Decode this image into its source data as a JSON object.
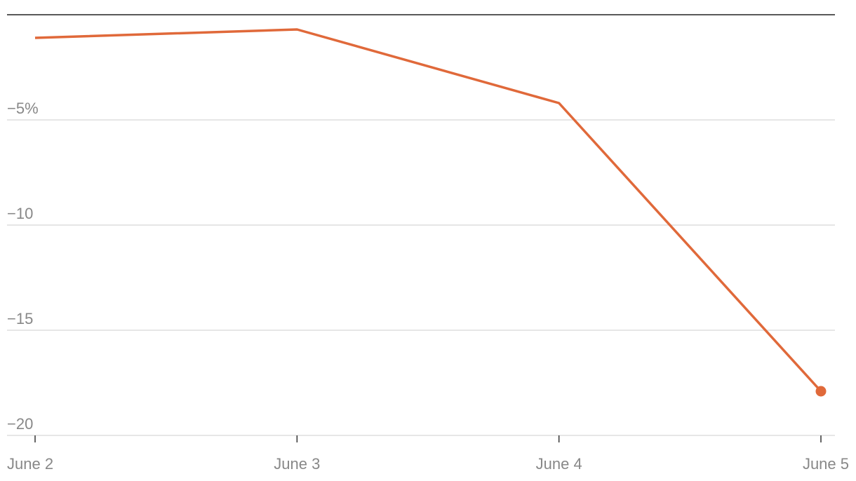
{
  "chart_data": {
    "type": "line",
    "categories": [
      "June 2",
      "June 3",
      "June 4",
      "June 5"
    ],
    "series": [
      {
        "color": "#e0693a",
        "values": [
          -1.1,
          -0.7,
          -4.2,
          -17.9
        ]
      }
    ],
    "ylim": [
      -20,
      0
    ],
    "yticks": [
      {
        "value": -5,
        "label": "−5%"
      },
      {
        "value": -10,
        "label": "−10"
      },
      {
        "value": -15,
        "label": "−15"
      },
      {
        "value": -20,
        "label": "−20"
      }
    ],
    "grid": true
  }
}
